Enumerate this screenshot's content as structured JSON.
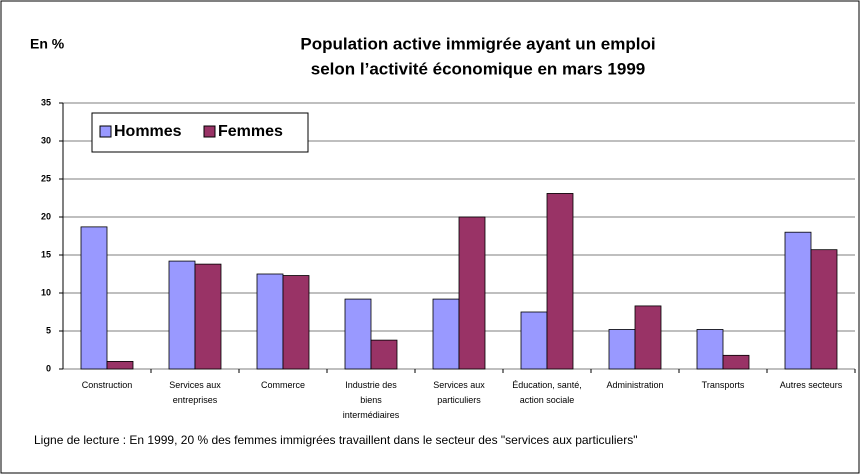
{
  "chart_data": {
    "type": "bar",
    "title": [
      "Population active immigrée ayant un emploi",
      "selon l’activité économique en mars 1999"
    ],
    "y_label": "En %",
    "note": "Ligne de lecture : En 1999, 20 % des femmes immigrées travaillent dans le secteur des \"services aux particuliers\"",
    "categories": [
      "Construction",
      "Services aux entreprises",
      "Commerce",
      "Industrie des biens intermédiaires",
      "Services aux particuliers",
      "Éducation, santé, action sociale",
      "Administration",
      "Transports",
      "Autres secteurs"
    ],
    "series": [
      {
        "name": "Hommes",
        "color": "#9999ff",
        "values": [
          18.7,
          14.2,
          12.5,
          9.2,
          9.2,
          7.5,
          5.2,
          5.2,
          18.0
        ]
      },
      {
        "name": "Femmes",
        "color": "#993366",
        "values": [
          1.0,
          13.8,
          12.3,
          3.8,
          20.0,
          23.1,
          8.3,
          1.8,
          15.7
        ]
      }
    ],
    "ylim": [
      0,
      35
    ],
    "yticks": [
      0,
      5,
      10,
      15,
      20,
      25,
      30,
      35
    ],
    "grid": true,
    "legend": "top-left"
  }
}
